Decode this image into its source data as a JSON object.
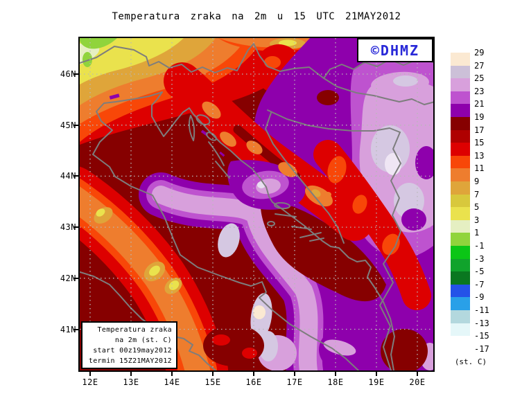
{
  "title": "Temperatura zraka na 2m u 15 UTC 21MAY2012",
  "logo": {
    "text": "©DHMZ",
    "color": "#2828D8"
  },
  "info_box": {
    "lines": [
      "Temperatura zraka",
      "na 2m (st. C)",
      "start 00z19may2012",
      "termin 15Z21MAY2012"
    ]
  },
  "axes": {
    "lat": [
      "46N",
      "45N",
      "44N",
      "43N",
      "42N",
      "41N"
    ],
    "lon": [
      "12E",
      "13E",
      "14E",
      "15E",
      "16E",
      "17E",
      "18E",
      "19E",
      "20E"
    ]
  },
  "colorbar": {
    "unit": "(st. C)",
    "labels": [
      29,
      27,
      25,
      23,
      21,
      19,
      17,
      15,
      13,
      11,
      9,
      7,
      5,
      3,
      1,
      -1,
      -3,
      -5,
      -7,
      -9,
      -11,
      -13,
      -15,
      -17
    ],
    "swatches": [
      {
        "range": "27..29",
        "color": "#FBE9D2"
      },
      {
        "range": "25..27",
        "color": "#CCC0D8"
      },
      {
        "range": "23..25",
        "color": "#D8A0DC"
      },
      {
        "range": "21..23",
        "color": "#BE53CF"
      },
      {
        "range": "19..21",
        "color": "#8E00AC"
      },
      {
        "range": "17..19",
        "color": "#860000"
      },
      {
        "range": "15..17",
        "color": "#AF0000"
      },
      {
        "range": "13..15",
        "color": "#DD0000"
      },
      {
        "range": "11..13",
        "color": "#F84708"
      },
      {
        "range": "9..11",
        "color": "#EE7D2E"
      },
      {
        "range": "7..9",
        "color": "#DFA53A"
      },
      {
        "range": "5..7",
        "color": "#D8C83C"
      },
      {
        "range": "3..5",
        "color": "#EAE24D"
      },
      {
        "range": "1..3",
        "color": "#E5EFC2"
      },
      {
        "range": "-1..1",
        "color": "#90D43C"
      },
      {
        "range": "-3..-1",
        "color": "#0BC616"
      },
      {
        "range": "-5..-3",
        "color": "#10A32C"
      },
      {
        "range": "-7..-5",
        "color": "#0A7720"
      },
      {
        "range": "-9..-7",
        "color": "#2452E8"
      },
      {
        "range": "-11..-9",
        "color": "#29A0E8"
      },
      {
        "range": "-13..-11",
        "color": "#B3D8DE"
      },
      {
        "range": "-15..-13",
        "color": "#E5F7F9"
      },
      {
        "range": "-17..-15",
        "color": "#FFFFFF"
      }
    ]
  }
}
